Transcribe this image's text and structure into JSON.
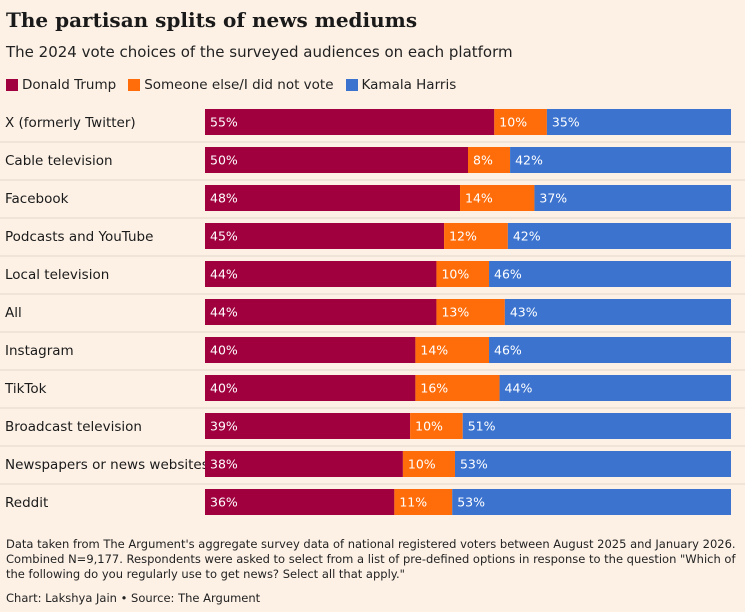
{
  "title": "The partisan splits of news mediums",
  "subtitle": "The 2024 vote choices of the surveyed audiences on each platform",
  "legend": [
    {
      "label": "Donald Trump",
      "color": "#a0003e"
    },
    {
      "label": "Someone else/I did not vote",
      "color": "#ff6d0a"
    },
    {
      "label": "Kamala Harris",
      "color": "#3b73cf"
    }
  ],
  "chart_data": {
    "type": "bar",
    "orientation": "horizontal",
    "stacked": true,
    "unit": "%",
    "categories": [
      "X (formerly Twitter)",
      "Cable television",
      "Facebook",
      "Podcasts and YouTube",
      "Local television",
      "All",
      "Instagram",
      "TikTok",
      "Broadcast television",
      "Newspapers or news websites",
      "Reddit"
    ],
    "series": [
      {
        "name": "Donald Trump",
        "color": "#a0003e",
        "values": [
          55,
          50,
          48,
          45,
          44,
          44,
          40,
          40,
          39,
          38,
          36
        ]
      },
      {
        "name": "Someone else/I did not vote",
        "color": "#ff6d0a",
        "values": [
          10,
          8,
          14,
          12,
          10,
          13,
          14,
          16,
          10,
          10,
          11
        ]
      },
      {
        "name": "Kamala Harris",
        "color": "#3b73cf",
        "values": [
          35,
          42,
          37,
          42,
          46,
          43,
          46,
          44,
          51,
          53,
          53
        ]
      }
    ]
  },
  "footnote": "Data taken from The Argument's aggregate survey data of national registered voters between August 2025 and January 2026. Combined N=9,177. Respondents were asked to select from a list of pre-defined options in response to the question \"Which of the following do you regularly use to get news? Select all that apply.\"",
  "credit": "Chart: Lakshya Jain • Source: The Argument"
}
